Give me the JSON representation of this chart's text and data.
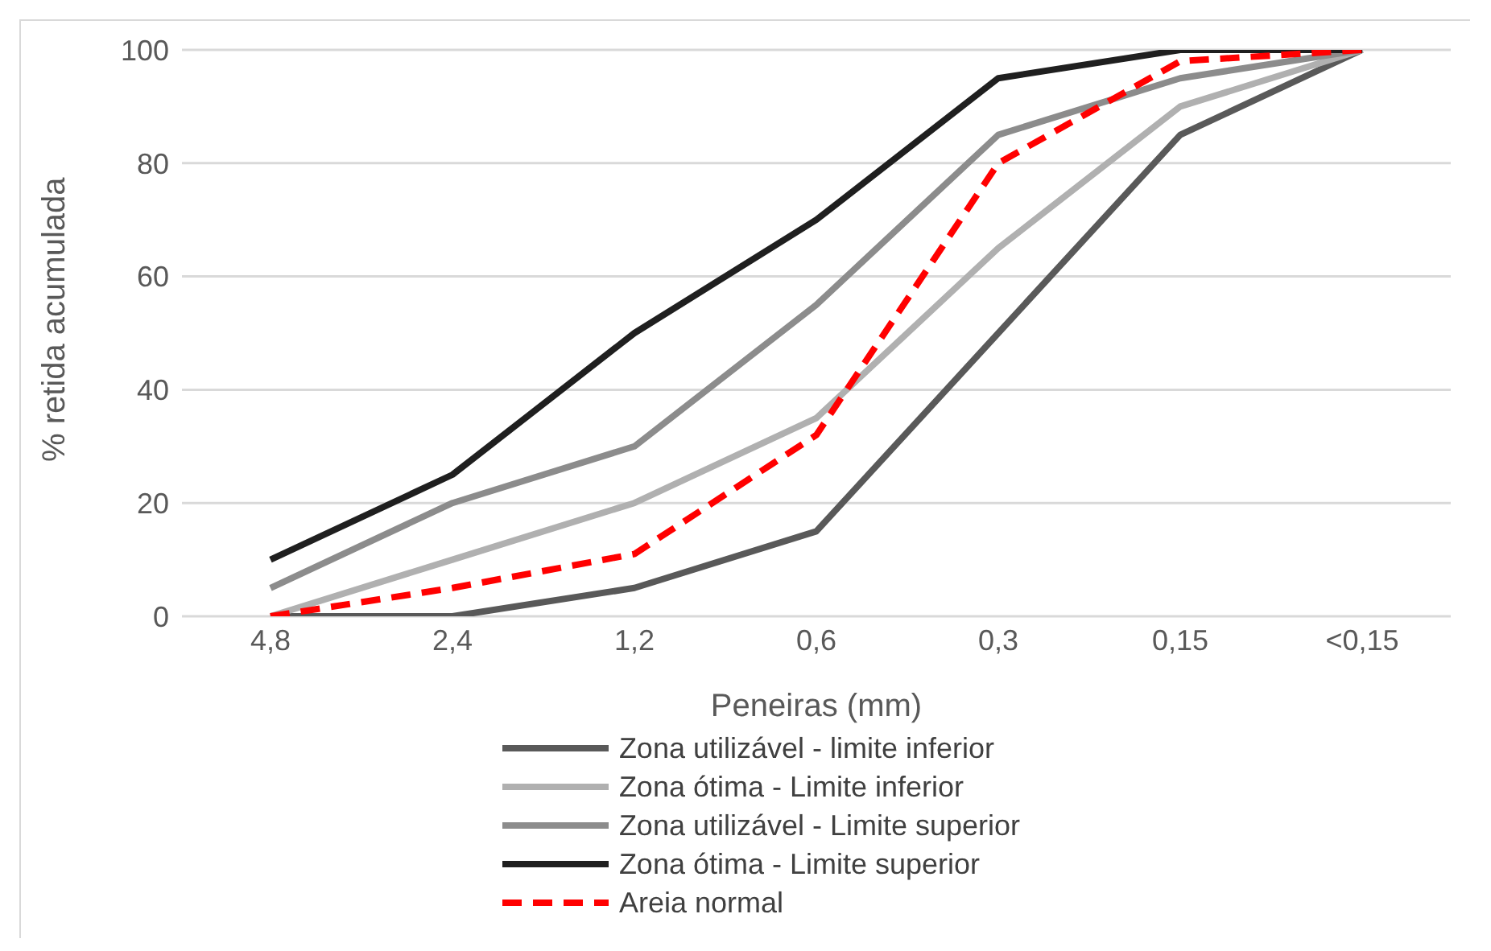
{
  "chart_data": {
    "type": "line",
    "xlabel": "Peneiras (mm)",
    "ylabel": "% retida acumulada",
    "categories": [
      "4,8",
      "2,4",
      "1,2",
      "0,6",
      "0,3",
      "0,15",
      "<0,15"
    ],
    "ylim": [
      0,
      100
    ],
    "yticks": [
      0,
      20,
      40,
      60,
      80,
      100
    ],
    "grid": "y",
    "legend": "bottom",
    "marker": "none",
    "series": [
      {
        "name": "Zona utilizável - limite inferior",
        "color": "#595959",
        "line_style": "solid",
        "values": [
          0,
          0,
          5,
          15,
          50,
          85,
          100
        ]
      },
      {
        "name": "Zona ótima - Limite inferior",
        "color": "#b0b0b0",
        "line_style": "solid",
        "values": [
          0,
          10,
          20,
          35,
          65,
          90,
          100
        ]
      },
      {
        "name": "Zona utilizável - Limite superior",
        "color": "#8c8c8c",
        "line_style": "solid",
        "values": [
          5,
          20,
          30,
          55,
          85,
          95,
          100
        ]
      },
      {
        "name": "Zona ótima - Limite superior",
        "color": "#1f1f1f",
        "line_style": "solid",
        "values": [
          10,
          25,
          50,
          70,
          95,
          100,
          100
        ]
      },
      {
        "name": "Areia normal",
        "color": "#ff0000",
        "line_style": "dashed",
        "values": [
          0,
          5,
          11,
          32,
          80,
          98,
          100
        ]
      }
    ]
  }
}
